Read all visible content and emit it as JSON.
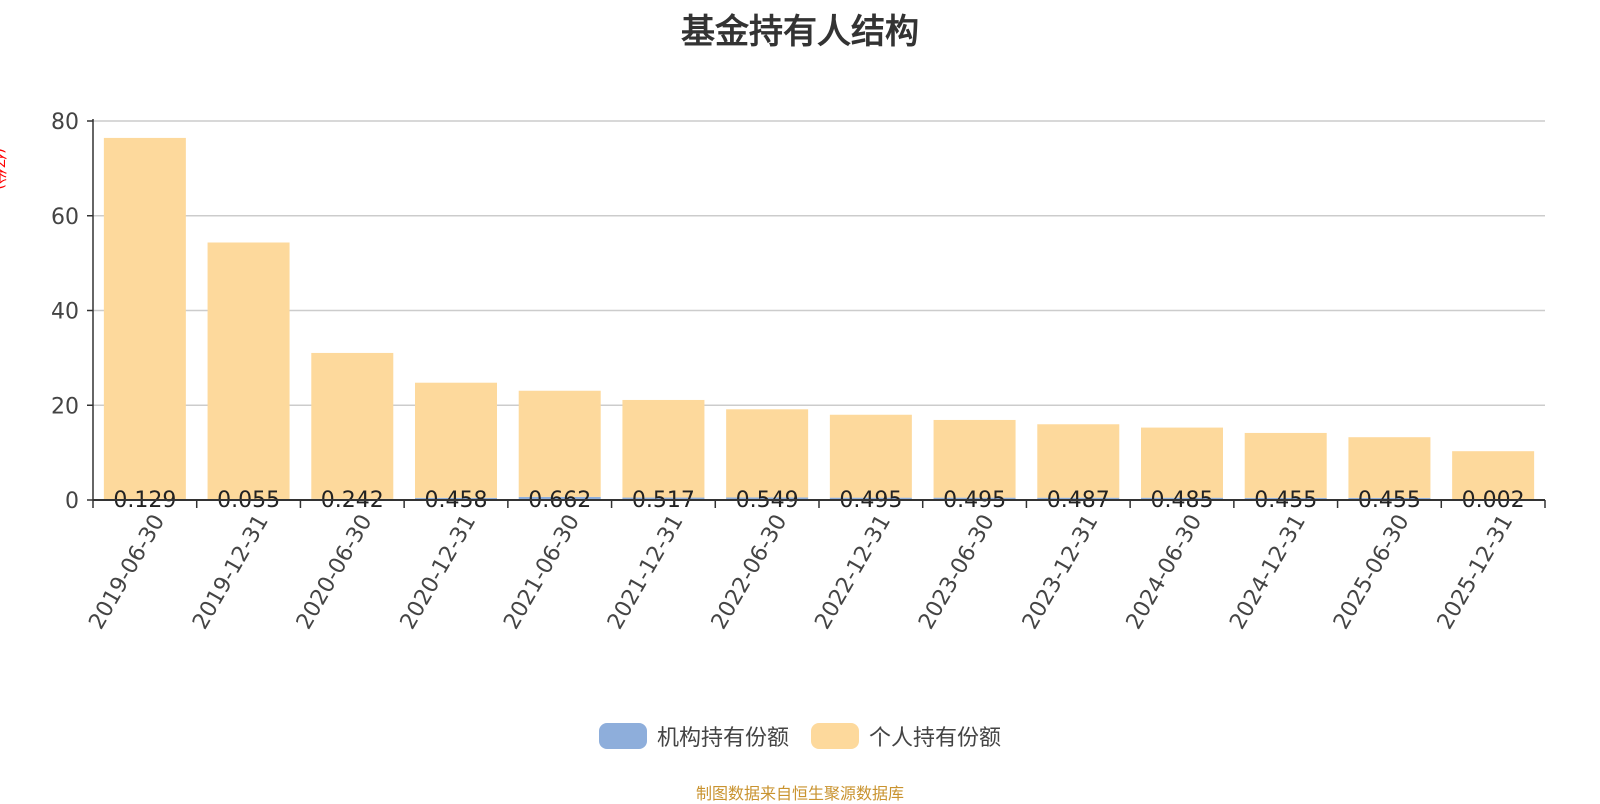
{
  "chart_data": {
    "type": "bar",
    "stacked": true,
    "title": "基金持有人结构",
    "unit_label": "(亿份)",
    "ylim": [
      0,
      80
    ],
    "yticks": [
      0,
      20,
      40,
      60,
      80
    ],
    "grid": true,
    "legend_position": "bottom-center",
    "categories": [
      "2019-06-30",
      "2019-12-31",
      "2020-06-30",
      "2020-12-31",
      "2021-06-30",
      "2021-12-31",
      "2022-06-30",
      "2022-12-31",
      "2023-06-30",
      "2023-12-31",
      "2024-06-30",
      "2024-12-31",
      "2025-06-30",
      "2025-12-31"
    ],
    "series": [
      {
        "name": "机构持有份额",
        "color": "#8eaedb",
        "values": [
          0.129,
          0.055,
          0.242,
          0.458,
          0.662,
          0.517,
          0.549,
          0.495,
          0.495,
          0.487,
          0.485,
          0.455,
          0.455,
          0.002
        ],
        "labels": [
          "0.129",
          "0.055",
          "0.242",
          "0.458",
          "0.662",
          "0.517",
          "0.549",
          "0.495",
          "0.495",
          "0.487",
          "0.485",
          "0.455",
          "0.455",
          "0.002"
        ]
      },
      {
        "name": "个人持有份额",
        "color": "#fdd99c",
        "values": [
          76.3,
          54.3,
          30.8,
          24.3,
          22.4,
          20.6,
          18.6,
          17.5,
          16.4,
          15.5,
          14.8,
          13.7,
          12.8,
          10.3
        ]
      }
    ]
  },
  "source_text": "制图数据来自恒生聚源数据库"
}
